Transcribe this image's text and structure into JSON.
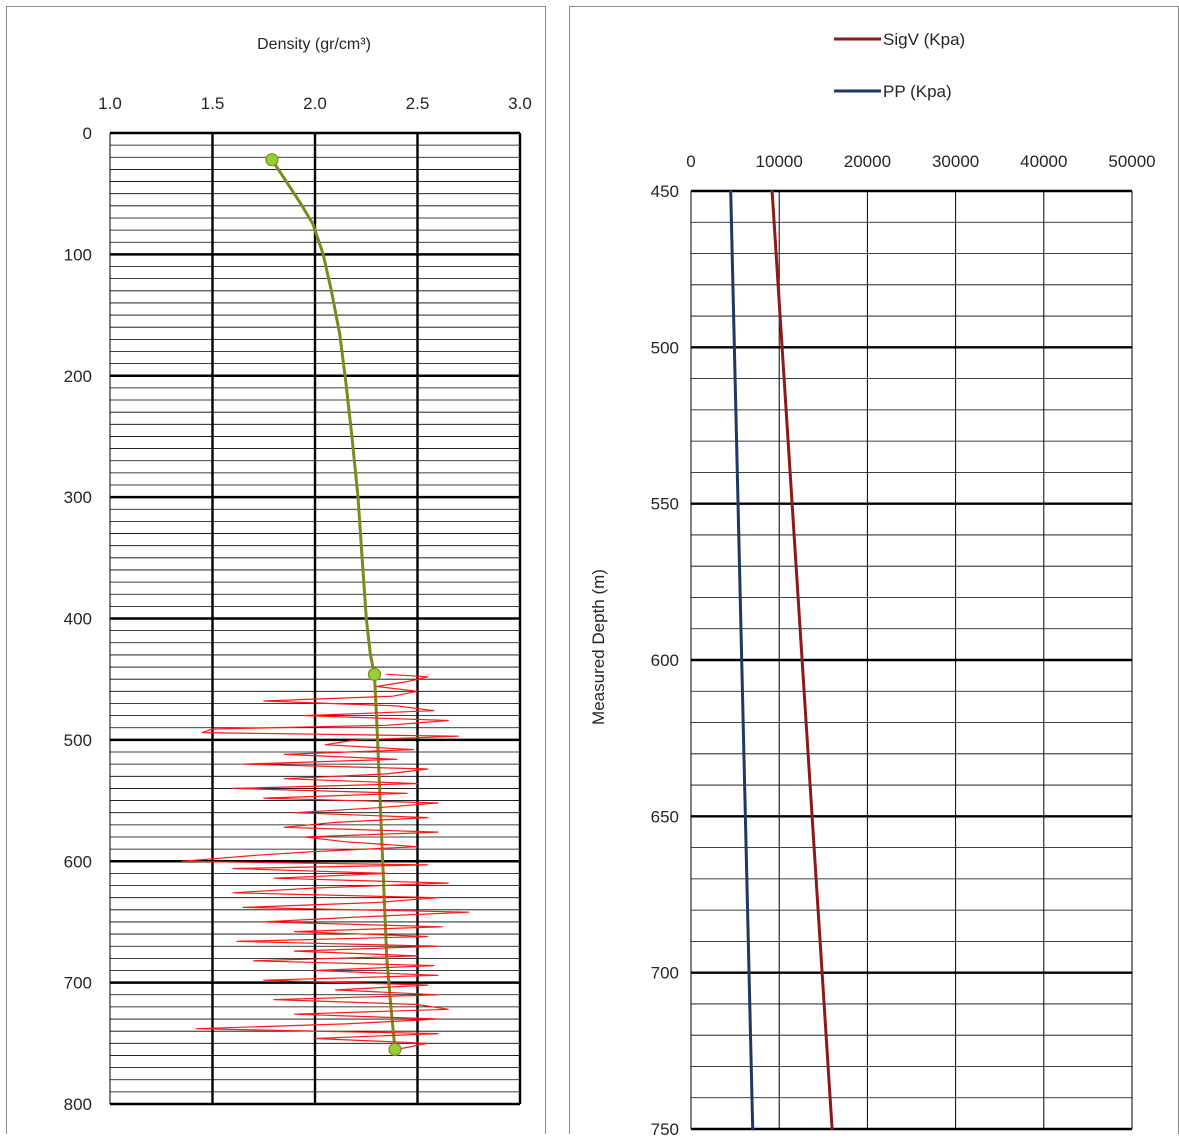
{
  "chart_data": [
    {
      "type": "line",
      "title": "Density (gr/cm³)",
      "xlabel": "",
      "ylabel": "",
      "x_axis_position": "top",
      "y_axis_inverted": true,
      "xlim": [
        1.0,
        3.0
      ],
      "ylim": [
        0,
        800
      ],
      "x_ticks": [
        "1.0",
        "1.5",
        "2.0",
        "2.5",
        "3.0"
      ],
      "y_ticks": [
        "0",
        "100",
        "200",
        "300",
        "400",
        "500",
        "600",
        "700",
        "800"
      ],
      "grid": "on",
      "legend": "none",
      "series": [
        {
          "color": "#7a8a1e",
          "marker_color": "#9acd32",
          "points": [
            [
              1.79,
              22
            ],
            [
              1.86,
              40
            ],
            [
              1.93,
              58
            ],
            [
              1.99,
              75
            ],
            [
              2.04,
              100
            ],
            [
              2.08,
              130
            ],
            [
              2.12,
              165
            ],
            [
              2.15,
              205
            ],
            [
              2.18,
              250
            ],
            [
              2.21,
              300
            ],
            [
              2.23,
              350
            ],
            [
              2.25,
              400
            ],
            [
              2.27,
              430
            ],
            [
              2.29,
              446
            ],
            [
              2.3,
              480
            ],
            [
              2.31,
              520
            ],
            [
              2.32,
              560
            ],
            [
              2.33,
              600
            ],
            [
              2.34,
              640
            ],
            [
              2.35,
              680
            ],
            [
              2.37,
              720
            ],
            [
              2.39,
              755
            ]
          ],
          "markers": [
            [
              1.79,
              22
            ],
            [
              2.29,
              446
            ],
            [
              2.39,
              755
            ]
          ]
        },
        {
          "color": "#ff1a1a",
          "points": [
            [
              2.35,
              446
            ],
            [
              2.55,
              448
            ],
            [
              2.45,
              452
            ],
            [
              2.3,
              456
            ],
            [
              2.5,
              460
            ],
            [
              2.38,
              464
            ],
            [
              1.75,
              468
            ],
            [
              2.4,
              472
            ],
            [
              2.58,
              476
            ],
            [
              1.95,
              480
            ],
            [
              2.65,
              484
            ],
            [
              2.35,
              488
            ],
            [
              1.5,
              491
            ],
            [
              1.45,
              494
            ],
            [
              2.7,
              497
            ],
            [
              2.2,
              500
            ],
            [
              2.05,
              504
            ],
            [
              2.48,
              508
            ],
            [
              1.85,
              512
            ],
            [
              2.4,
              516
            ],
            [
              1.65,
              520
            ],
            [
              2.55,
              524
            ],
            [
              2.35,
              528
            ],
            [
              1.85,
              532
            ],
            [
              2.5,
              536
            ],
            [
              1.6,
              540
            ],
            [
              2.45,
              544
            ],
            [
              1.75,
              548
            ],
            [
              2.6,
              552
            ],
            [
              2.3,
              556
            ],
            [
              1.9,
              560
            ],
            [
              2.55,
              564
            ],
            [
              2.1,
              568
            ],
            [
              1.85,
              572
            ],
            [
              2.6,
              576
            ],
            [
              1.95,
              580
            ],
            [
              2.15,
              584
            ],
            [
              2.5,
              588
            ],
            [
              2.0,
              592
            ],
            [
              1.72,
              595
            ],
            [
              1.35,
              600
            ],
            [
              2.55,
              603
            ],
            [
              1.6,
              606
            ],
            [
              2.35,
              610
            ],
            [
              1.8,
              614
            ],
            [
              2.65,
              618
            ],
            [
              2.0,
              622
            ],
            [
              1.6,
              626
            ],
            [
              2.6,
              630
            ],
            [
              2.3,
              634
            ],
            [
              1.65,
              638
            ],
            [
              2.75,
              642
            ],
            [
              2.2,
              646
            ],
            [
              1.75,
              650
            ],
            [
              2.62,
              654
            ],
            [
              1.9,
              658
            ],
            [
              2.55,
              662
            ],
            [
              1.62,
              666
            ],
            [
              2.6,
              670
            ],
            [
              1.9,
              674
            ],
            [
              2.5,
              678
            ],
            [
              1.7,
              682
            ],
            [
              2.58,
              686
            ],
            [
              2.0,
              690
            ],
            [
              2.6,
              694
            ],
            [
              1.75,
              698
            ],
            [
              2.55,
              702
            ],
            [
              2.1,
              706
            ],
            [
              2.6,
              710
            ],
            [
              1.8,
              714
            ],
            [
              2.5,
              718
            ],
            [
              2.65,
              722
            ],
            [
              1.9,
              726
            ],
            [
              2.6,
              730
            ],
            [
              2.15,
              734
            ],
            [
              1.42,
              738
            ],
            [
              2.6,
              742
            ],
            [
              2.0,
              746
            ],
            [
              2.55,
              750
            ],
            [
              2.4,
              755
            ]
          ]
        }
      ]
    },
    {
      "type": "line",
      "title": "",
      "xlabel": "",
      "ylabel": "Measured Depth (m)",
      "x_axis_position": "top",
      "y_axis_inverted": true,
      "xlim": [
        0,
        50000
      ],
      "ylim": [
        450,
        750
      ],
      "x_ticks": [
        "0",
        "10000",
        "20000",
        "30000",
        "40000",
        "50000"
      ],
      "y_ticks": [
        "450",
        "500",
        "550",
        "600",
        "650",
        "700",
        "750"
      ],
      "grid": "on",
      "legend": "top",
      "series": [
        {
          "name": "SigV (Kpa)",
          "color": "#8b1a1a",
          "points": [
            [
              9200,
              450
            ],
            [
              16000,
              750
            ]
          ]
        },
        {
          "name": "PP (Kpa)",
          "color": "#1f3864",
          "points": [
            [
              4500,
              450
            ],
            [
              7000,
              750
            ]
          ]
        }
      ]
    }
  ]
}
